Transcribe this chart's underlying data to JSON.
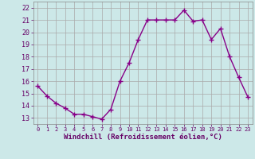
{
  "x": [
    0,
    1,
    2,
    3,
    4,
    5,
    6,
    7,
    8,
    9,
    10,
    11,
    12,
    13,
    14,
    15,
    16,
    17,
    18,
    19,
    20,
    21,
    22,
    23
  ],
  "y": [
    15.6,
    14.8,
    14.2,
    13.8,
    13.3,
    13.3,
    13.1,
    12.9,
    13.7,
    16.0,
    17.5,
    19.4,
    21.0,
    21.0,
    21.0,
    21.0,
    21.8,
    20.9,
    21.0,
    19.4,
    20.3,
    18.0,
    16.3,
    14.7
  ],
  "line_color": "#880088",
  "marker": "+",
  "markersize": 4,
  "linewidth": 1.0,
  "xlabel": "Windchill (Refroidissement éolien,°C)",
  "xlabel_fontsize": 6.5,
  "xlabel_color": "#660066",
  "tick_color": "#660066",
  "tick_fontsize": 6,
  "background_color": "#cce8e8",
  "ylim": [
    12.5,
    22.5
  ],
  "yticks": [
    13,
    14,
    15,
    16,
    17,
    18,
    19,
    20,
    21,
    22
  ],
  "xticks": [
    0,
    1,
    2,
    3,
    4,
    5,
    6,
    7,
    8,
    9,
    10,
    11,
    12,
    13,
    14,
    15,
    16,
    17,
    18,
    19,
    20,
    21,
    22,
    23
  ],
  "grid_color": "#aaaaaa",
  "grid_linewidth": 0.5,
  "spine_color": "#888888"
}
